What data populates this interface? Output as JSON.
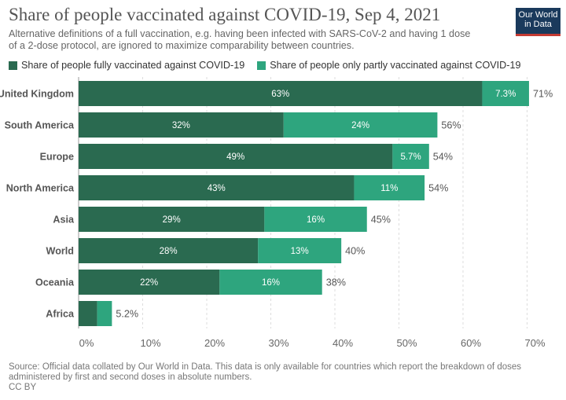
{
  "title": "Share of people vaccinated against COVID-19, Sep 4, 2021",
  "subtitle": "Alternative definitions of a full vaccination, e.g. having been infected with SARS-CoV-2 and having 1 dose of a 2-dose protocol, are ignored to maximize comparability between countries.",
  "logo": {
    "line1": "Our World",
    "line2": "in Data"
  },
  "source": "Source: Official data collated by Our World in Data. This data is only available for countries which report the breakdown of doses administered by first and second doses in absolute numbers.",
  "license": "CC BY",
  "chart_data": {
    "type": "bar",
    "orientation": "horizontal",
    "stacked": true,
    "categories": [
      "United Kingdom",
      "South America",
      "Europe",
      "North America",
      "Asia",
      "World",
      "Oceania",
      "Africa"
    ],
    "series": [
      {
        "name": "Share of people fully vaccinated against COVID-19",
        "color": "#2a6a50",
        "values": [
          63,
          32,
          49,
          43,
          29,
          28,
          22,
          2.9
        ],
        "labels": [
          "63%",
          "32%",
          "49%",
          "43%",
          "29%",
          "28%",
          "22%",
          ""
        ]
      },
      {
        "name": "Share of people only partly vaccinated against COVID-19",
        "color": "#2ea57e",
        "values": [
          7.3,
          24,
          5.7,
          11,
          16,
          13,
          16,
          2.3
        ],
        "labels": [
          "7.3%",
          "24%",
          "5.7%",
          "11%",
          "16%",
          "13%",
          "16%",
          ""
        ]
      }
    ],
    "totals": [
      "71%",
      "56%",
      "54%",
      "54%",
      "45%",
      "40%",
      "38%",
      "5.2%"
    ],
    "xlim": [
      0,
      70
    ],
    "xticks": [
      "0%",
      "10%",
      "20%",
      "30%",
      "40%",
      "50%",
      "60%",
      "70%"
    ],
    "grid": true,
    "legend": "top-left"
  }
}
